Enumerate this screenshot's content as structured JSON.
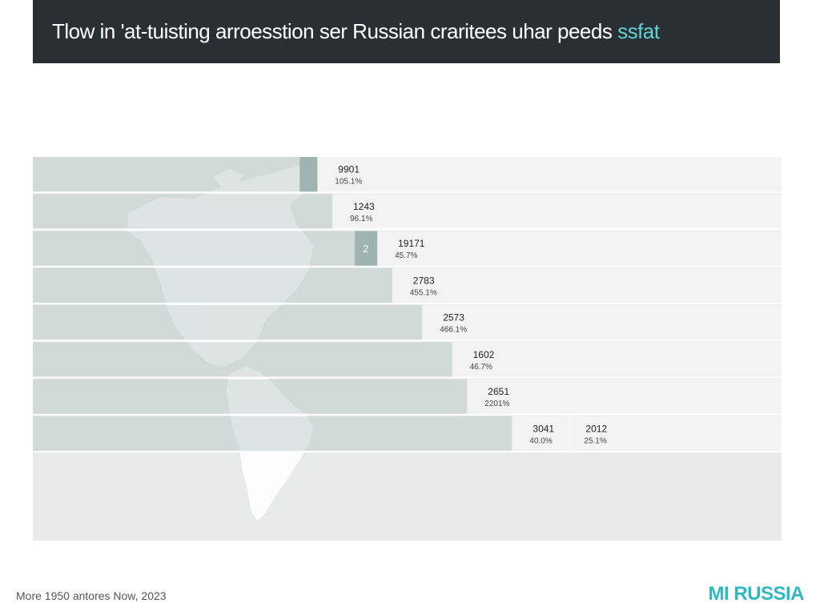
{
  "header": {
    "title_main": "Tlow in 'at-tuisting arroesstion ser Russian craritees uhar peeds ",
    "title_accent": "ssfat"
  },
  "footer": {
    "source": "More 1950 antores Now, 2023",
    "brand": "MI RUSSIA"
  },
  "colors": {
    "header_bg": "#2a2f33",
    "accent": "#5fd3d3",
    "brand": "#2fb8c0",
    "bar_fill": "#b7c6c3",
    "row_bg": "#f2f3f2"
  },
  "chart_data": {
    "type": "bar",
    "orientation": "horizontal",
    "title": "Tlow in 'at-tuisting arroesstion ser Russian craritees uhar peeds ssfat",
    "badge": "2",
    "rows": [
      {
        "value": "9901",
        "pct": "105.1%",
        "extent": 0.38
      },
      {
        "value": "1243",
        "pct": "96.1%",
        "extent": 0.4
      },
      {
        "value": "19171",
        "pct": "45.7%",
        "extent": 0.46
      },
      {
        "value": "2783",
        "pct": "455.1%",
        "extent": 0.48
      },
      {
        "value": "2573",
        "pct": "466.1%",
        "extent": 0.52
      },
      {
        "value": "1602",
        "pct": "46.7%",
        "extent": 0.56
      },
      {
        "value": "2651",
        "pct": "2201%",
        "extent": 0.58
      },
      {
        "value": "3041",
        "pct": "40.0%",
        "extent": 0.64,
        "value2": "2012",
        "pct2": "25.1%"
      }
    ]
  }
}
